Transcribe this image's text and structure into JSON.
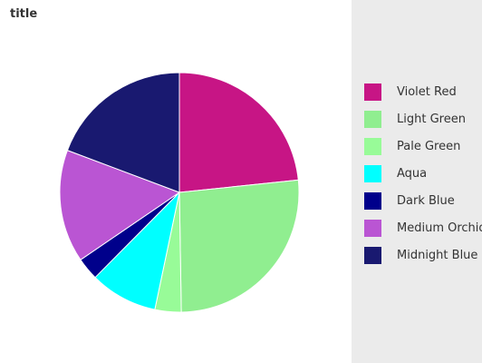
{
  "title": "title",
  "chart_data": {
    "type": "pie",
    "title": "title",
    "legend": "right",
    "slices": [
      {
        "label": "Violet Red",
        "value": 23,
        "color": "#C71585"
      },
      {
        "label": "Light Green",
        "value": 26,
        "color": "#90EE90"
      },
      {
        "label": "Pale Green",
        "value": 3.5,
        "color": "#98FB98"
      },
      {
        "label": "Aqua",
        "value": 9,
        "color": "#00FFFF"
      },
      {
        "label": "Dark Blue",
        "value": 3,
        "color": "#00008B"
      },
      {
        "label": "Medium Orchid",
        "value": 15,
        "color": "#BA55D3"
      },
      {
        "label": "Midnight Blue",
        "value": 19,
        "color": "#191970"
      }
    ]
  }
}
